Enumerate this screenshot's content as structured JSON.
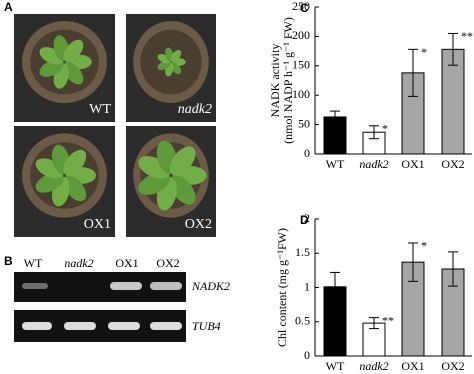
{
  "panel_a": {
    "label": "A",
    "photos": [
      "WT",
      "nadk2",
      "OX1",
      "OX2"
    ]
  },
  "panel_b": {
    "label": "B",
    "lanes": [
      "WT",
      "nadk2",
      "OX1",
      "OX2"
    ],
    "genes": [
      "NADK2",
      "TUB4"
    ]
  },
  "chart_data": [
    {
      "type": "bar",
      "panel": "C",
      "ylabel": [
        "NADK activity",
        "(nmol NADP h⁻¹ g⁻¹ FW)"
      ],
      "categories": [
        "WT",
        "nadk2",
        "OX1",
        "OX2"
      ],
      "values": [
        63,
        37,
        138,
        178
      ],
      "errors": [
        10,
        11,
        40,
        27
      ],
      "colors": [
        "#000000",
        "#ffffff",
        "#a6a6a6",
        "#a6a6a6"
      ],
      "annotations": [
        null,
        "*",
        "*",
        "**"
      ],
      "ylim": [
        0,
        250
      ],
      "yticks": [
        0,
        50,
        100,
        150,
        200,
        250
      ]
    },
    {
      "type": "bar",
      "panel": "D",
      "ylabel": [
        "Chl content (mg g⁻¹FW)"
      ],
      "categories": [
        "WT",
        "nadk2",
        "OX1",
        "OX2"
      ],
      "values": [
        1.01,
        0.48,
        1.37,
        1.27
      ],
      "errors": [
        0.21,
        0.08,
        0.28,
        0.25
      ],
      "colors": [
        "#000000",
        "#ffffff",
        "#a6a6a6",
        "#a6a6a6"
      ],
      "annotations": [
        null,
        "**",
        "*",
        null
      ],
      "ylim": [
        0,
        2
      ],
      "yticks": [
        0,
        0.5,
        1,
        1.5,
        2
      ]
    }
  ]
}
